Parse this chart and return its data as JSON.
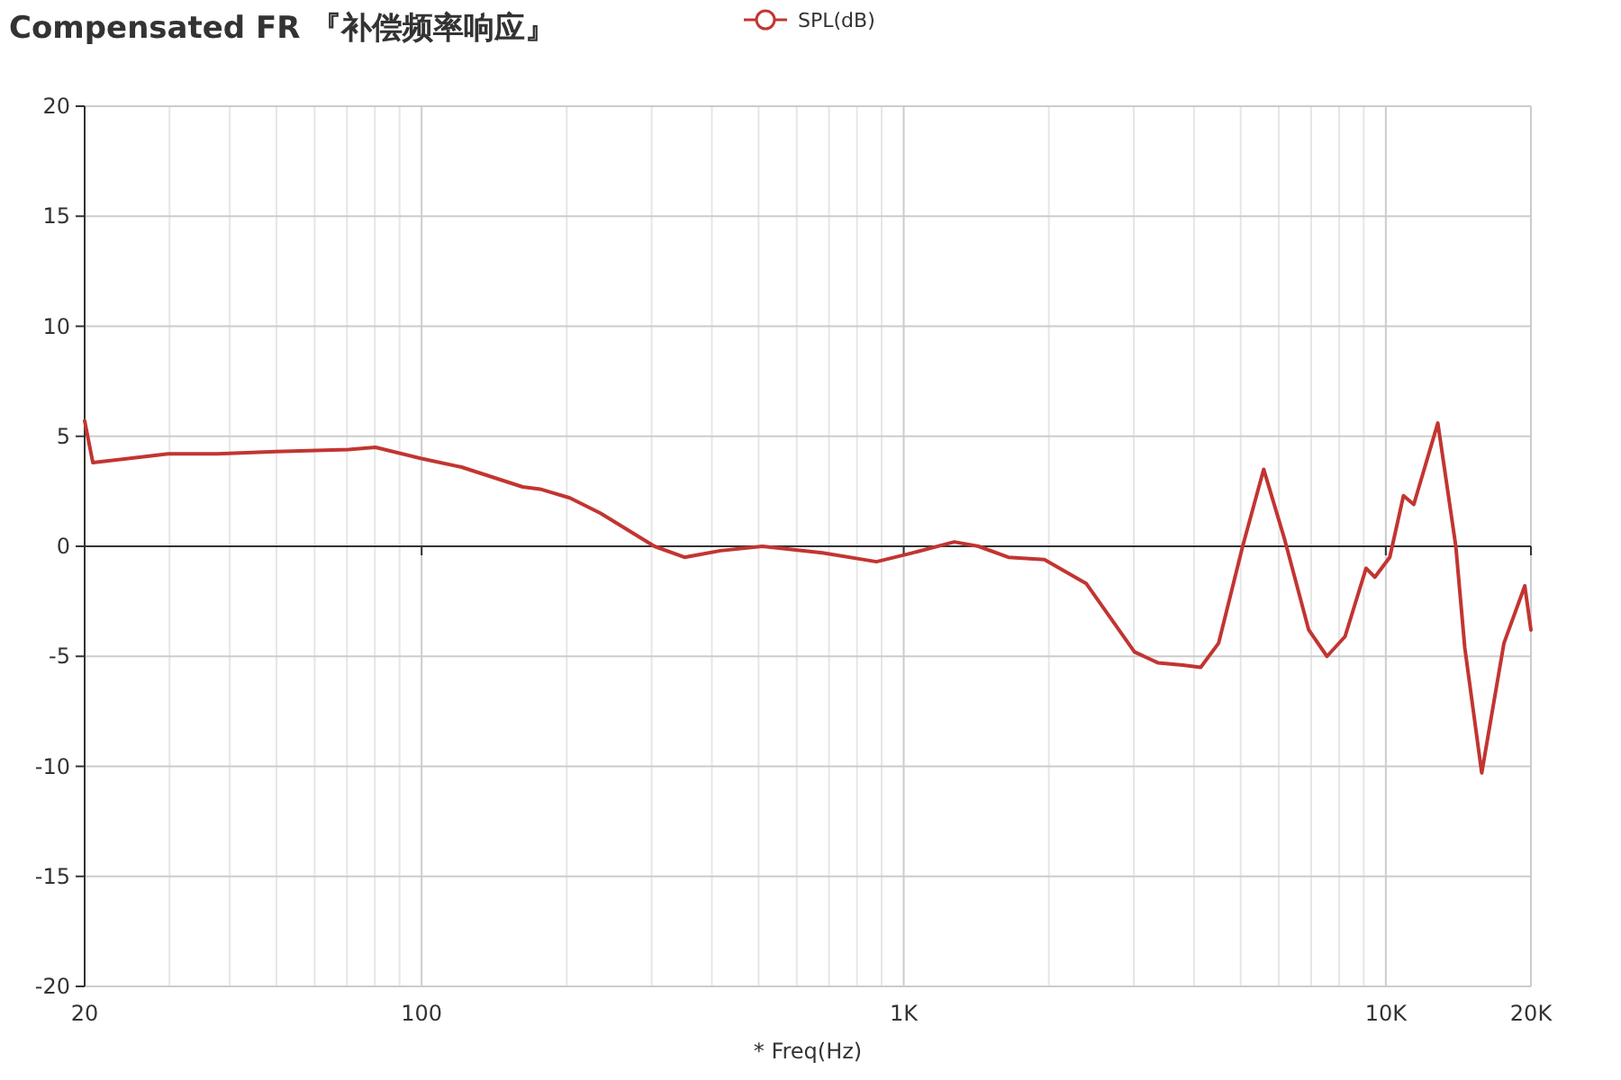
{
  "chart_data": {
    "type": "line",
    "title": "Compensated FR 『补偿频率响应』",
    "xlabel": "* Freq(Hz)",
    "log": "x",
    "grid": true,
    "legend": "top",
    "xlim": [
      20,
      20000
    ],
    "ylim": [
      -20,
      20
    ],
    "xticks": [
      20,
      {
        "value": 30,
        "label": null
      },
      {
        "value": 40,
        "label": null
      },
      {
        "value": 50,
        "label": null
      },
      {
        "value": 60,
        "label": null
      },
      {
        "value": 70,
        "label": null
      },
      {
        "value": 80,
        "label": null
      },
      {
        "value": 90,
        "label": null
      },
      100,
      {
        "value": 200,
        "label": null
      },
      {
        "value": 300,
        "label": null
      },
      {
        "value": 400,
        "label": null
      },
      {
        "value": 500,
        "label": null
      },
      {
        "value": 600,
        "label": null
      },
      {
        "value": 700,
        "label": null
      },
      {
        "value": 800,
        "label": null
      },
      {
        "value": 900,
        "label": null
      },
      {
        "value": 1000,
        "label": "1K"
      },
      {
        "value": 2000,
        "label": null
      },
      {
        "value": 3000,
        "label": null
      },
      {
        "value": 4000,
        "label": null
      },
      {
        "value": 5000,
        "label": null
      },
      {
        "value": 6000,
        "label": null
      },
      {
        "value": 7000,
        "label": null
      },
      {
        "value": 8000,
        "label": null
      },
      {
        "value": 9000,
        "label": null
      },
      {
        "value": 10000,
        "label": "10K"
      },
      {
        "value": 20000,
        "label": "20K"
      }
    ],
    "yticks": [
      -20,
      -15,
      -10,
      -5,
      0,
      5,
      10,
      15,
      20
    ],
    "series": [
      {
        "name": "SPL(dB)",
        "color": "#c23531",
        "x": [
          20,
          20.8,
          29.8,
          37.5,
          49.9,
          70.5,
          80.2,
          99.4,
          121,
          162,
          176,
          203,
          235,
          304,
          351,
          417,
          509,
          678,
          878,
          1042,
          1273,
          1429,
          1648,
          1958,
          2393,
          3011,
          3373,
          3791,
          4130,
          4500,
          5047,
          5580,
          6170,
          6920,
          7550,
          8230,
          9100,
          9490,
          10190,
          10880,
          11430,
          12820,
          13970,
          14580,
          15810,
          17580,
          19420,
          20000
        ],
        "values": [
          5.7,
          3.8,
          4.2,
          4.2,
          4.3,
          4.4,
          4.5,
          4.0,
          3.6,
          2.7,
          2.6,
          2.2,
          1.5,
          0.0,
          -0.5,
          -0.2,
          0.0,
          -0.3,
          -0.7,
          -0.3,
          0.2,
          0.0,
          -0.5,
          -0.6,
          -1.7,
          -4.8,
          -5.3,
          -5.4,
          -5.5,
          -4.4,
          0.0,
          3.5,
          0.3,
          -3.8,
          -5.0,
          -4.1,
          -1.0,
          -1.4,
          -0.5,
          2.3,
          1.9,
          5.6,
          0.0,
          -4.6,
          -10.3,
          -4.4,
          -1.8,
          -3.8
        ]
      }
    ]
  }
}
